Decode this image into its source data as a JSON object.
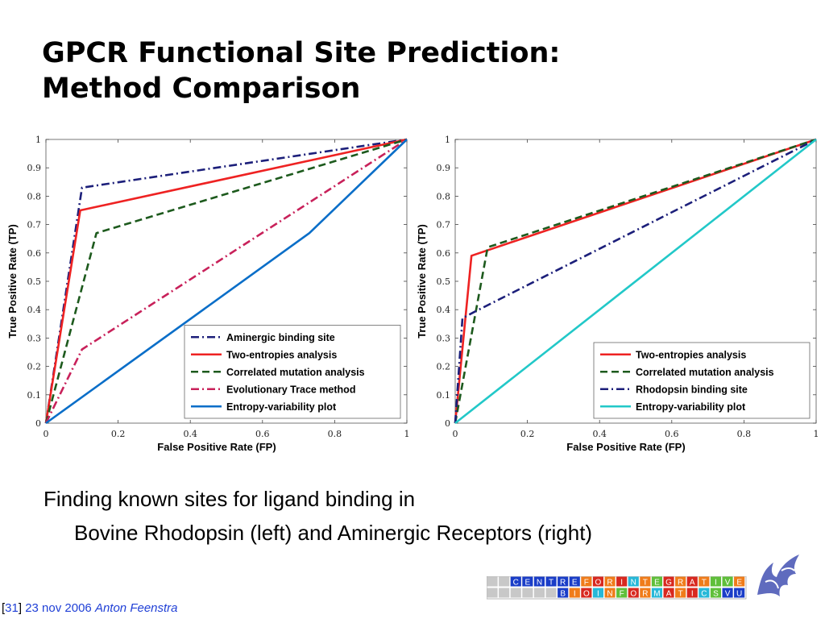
{
  "slide": {
    "title_line1": "GPCR Functional Site Prediction:",
    "title_line2": "Method Comparison",
    "caption_line1": "Finding known sites for ligand binding in",
    "caption_line2": "Bovine Rhodopsin (left) and Aminergic Receptors (right)",
    "footer": {
      "bracket_open": "[",
      "page": "31",
      "bracket_close": "]",
      "date": " 23 nov 2006 ",
      "author": "Anton Feenstra"
    },
    "logo": {
      "row1": [
        "C",
        "E",
        "N",
        "T",
        "R",
        "E",
        "F",
        "O",
        "R",
        "I",
        "N",
        "T",
        "E",
        "G",
        "R",
        "A",
        "T",
        "I",
        "V",
        "E"
      ],
      "row2": [
        "B",
        "I",
        "O",
        "I",
        "N",
        "F",
        "O",
        "R",
        "M",
        "A",
        "T",
        "I",
        "C",
        "S",
        "V",
        "U"
      ],
      "colors": {
        "blue": "#1a3dc8",
        "orange": "#f07c1a",
        "red": "#d8281f",
        "cyan": "#27b8d8",
        "green": "#5fbf3a",
        "gray": "#c8c8c8"
      }
    }
  },
  "chart_data": [
    {
      "type": "line",
      "xlabel": "False Positive Rate (FP)",
      "ylabel": "True Positive Rate (TP)",
      "xlim": [
        0,
        1
      ],
      "ylim": [
        0,
        1
      ],
      "xticks": [
        {
          "v": 0,
          "label": "0"
        },
        {
          "v": 0.2,
          "label": "0.2"
        },
        {
          "v": 0.4,
          "label": "0.4"
        },
        {
          "v": 0.6,
          "label": "0.6"
        },
        {
          "v": 0.8,
          "label": "0.8"
        },
        {
          "v": 1,
          "label": "1"
        }
      ],
      "yticks": [
        {
          "v": 0,
          "label": "0"
        },
        {
          "v": 0.1,
          "label": "0.1"
        },
        {
          "v": 0.2,
          "label": "0.2"
        },
        {
          "v": 0.3,
          "label": "0.3"
        },
        {
          "v": 0.4,
          "label": "0.4"
        },
        {
          "v": 0.5,
          "label": "0.5"
        },
        {
          "v": 0.6,
          "label": "0.6"
        },
        {
          "v": 0.7,
          "label": "0.7"
        },
        {
          "v": 0.8,
          "label": "0.8"
        },
        {
          "v": 0.9,
          "label": "0.9"
        },
        {
          "v": 1,
          "label": "1"
        }
      ],
      "grid": false,
      "legend_position": "bottom-right",
      "series": [
        {
          "name": "Aminergic binding site",
          "color": "#1c1f7a",
          "dash": "dashdot",
          "points": [
            [
              0,
              0
            ],
            [
              0.1,
              0.83
            ],
            [
              1,
              1
            ]
          ]
        },
        {
          "name": "Two-entropies analysis",
          "color": "#ee2222",
          "dash": "solid",
          "points": [
            [
              0,
              0
            ],
            [
              0.095,
              0.75
            ],
            [
              1,
              1
            ]
          ]
        },
        {
          "name": "Correlated mutation analysis",
          "color": "#1d5a1d",
          "dash": "dashed",
          "points": [
            [
              0,
              0
            ],
            [
              0.14,
              0.67
            ],
            [
              1,
              1
            ]
          ]
        },
        {
          "name": "Evolutionary Trace method",
          "color": "#c8215a",
          "dash": "dashdot",
          "points": [
            [
              0,
              0
            ],
            [
              0.1,
              0.26
            ],
            [
              1,
              1
            ]
          ]
        },
        {
          "name": "Entropy-variability plot",
          "color": "#0a6ec8",
          "dash": "solid",
          "points": [
            [
              0,
              0
            ],
            [
              0.73,
              0.67
            ],
            [
              1,
              1
            ]
          ]
        }
      ]
    },
    {
      "type": "line",
      "xlabel": "False Positive Rate (FP)",
      "ylabel": "True Positive Rate (TP)",
      "xlim": [
        0,
        1
      ],
      "ylim": [
        0,
        1
      ],
      "xticks": [
        {
          "v": 0,
          "label": "0"
        },
        {
          "v": 0.2,
          "label": "0.2"
        },
        {
          "v": 0.4,
          "label": "0.4"
        },
        {
          "v": 0.6,
          "label": "0.6"
        },
        {
          "v": 0.8,
          "label": "0.8"
        },
        {
          "v": 1,
          "label": "1"
        }
      ],
      "yticks": [
        {
          "v": 0,
          "label": "0"
        },
        {
          "v": 0.1,
          "label": "0.1"
        },
        {
          "v": 0.2,
          "label": "0.2"
        },
        {
          "v": 0.3,
          "label": "0.3"
        },
        {
          "v": 0.4,
          "label": "0.4"
        },
        {
          "v": 0.5,
          "label": "0.5"
        },
        {
          "v": 0.6,
          "label": "0.6"
        },
        {
          "v": 0.7,
          "label": "0.7"
        },
        {
          "v": 0.8,
          "label": "0.8"
        },
        {
          "v": 0.9,
          "label": "0.9"
        },
        {
          "v": 1,
          "label": "1"
        }
      ],
      "grid": false,
      "legend_position": "bottom-right",
      "series": [
        {
          "name": "Two-entropies analysis",
          "color": "#ee2222",
          "dash": "solid",
          "points": [
            [
              0,
              0
            ],
            [
              0.045,
              0.59
            ],
            [
              1,
              1
            ]
          ]
        },
        {
          "name": "Correlated mutation analysis",
          "color": "#1d5a1d",
          "dash": "dashed",
          "points": [
            [
              0,
              0
            ],
            [
              0.09,
              0.62
            ],
            [
              1,
              1
            ]
          ]
        },
        {
          "name": "Rhodopsin binding site",
          "color": "#1c1f7a",
          "dash": "dashdot",
          "points": [
            [
              0,
              0
            ],
            [
              0.02,
              0.37
            ],
            [
              0.05,
              0.39
            ],
            [
              1,
              1
            ]
          ]
        },
        {
          "name": "Entropy-variability plot",
          "color": "#22c8c8",
          "dash": "solid",
          "points": [
            [
              0,
              0
            ],
            [
              1,
              1
            ]
          ]
        }
      ]
    }
  ]
}
